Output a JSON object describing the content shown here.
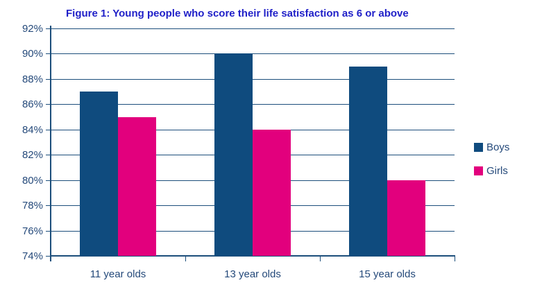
{
  "chart_data": {
    "type": "bar",
    "title": "Figure 1: Young people who score their life satisfaction as 6 or above",
    "categories": [
      "11 year olds",
      "13 year olds",
      "15 year olds"
    ],
    "series": [
      {
        "name": "Boys",
        "color": "#0F4B7E",
        "values": [
          87,
          90,
          89
        ]
      },
      {
        "name": "Girls",
        "color": "#E2007D",
        "values": [
          85,
          84,
          80
        ]
      }
    ],
    "ylim": [
      74,
      92
    ],
    "ytick_step": 2,
    "ytick_labels": [
      "74%",
      "76%",
      "78%",
      "80%",
      "82%",
      "84%",
      "86%",
      "88%",
      "90%",
      "92%"
    ],
    "xlabel": "",
    "ylabel": "",
    "grid": true,
    "legend_position": "right",
    "colors": {
      "title_text": "#1F1FC8",
      "axis_text": "#24497A",
      "grid_line": "#1C4E7B",
      "background": "#FFFFFF"
    }
  }
}
